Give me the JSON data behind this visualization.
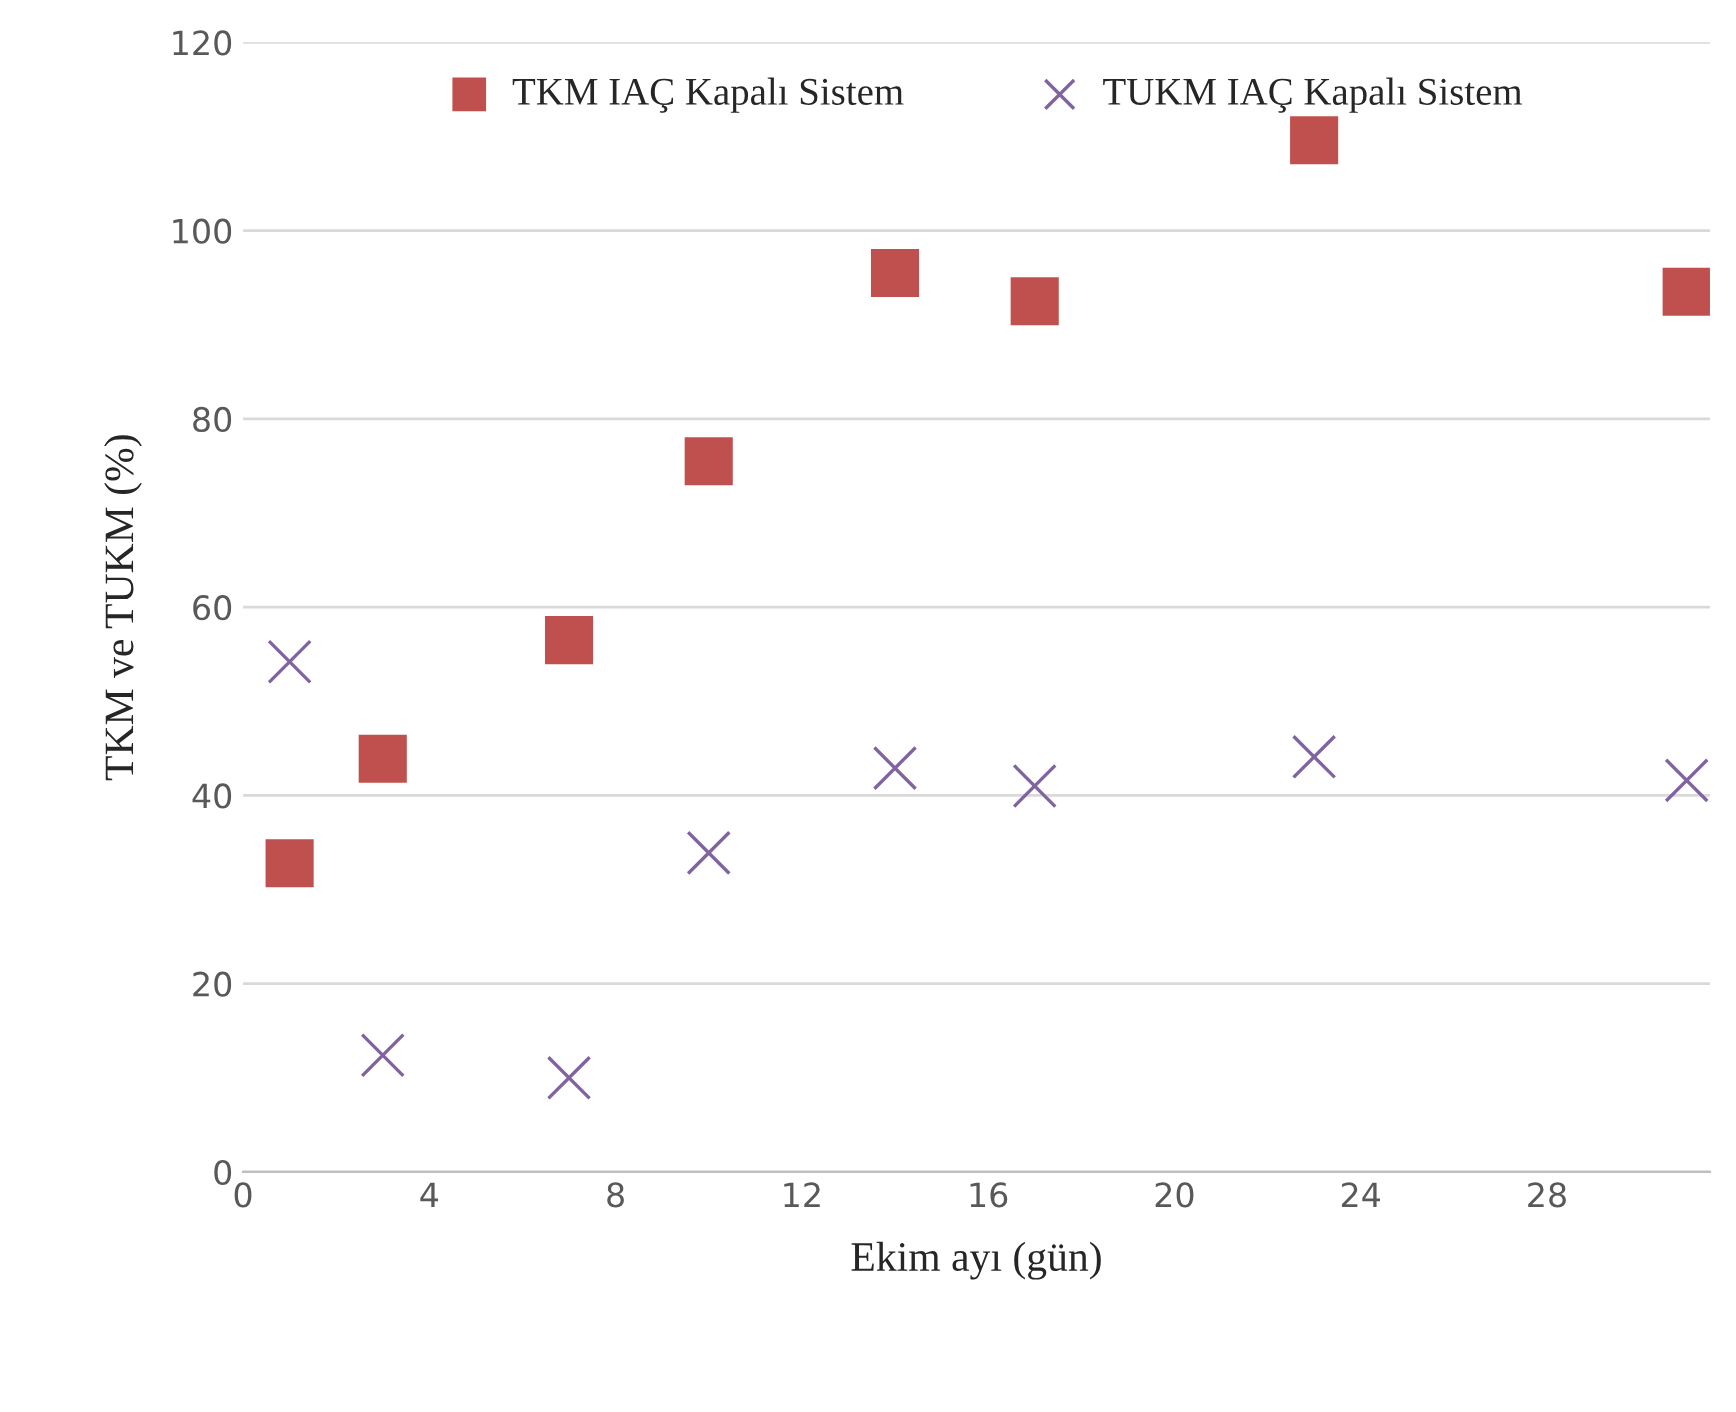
{
  "chart_data": {
    "type": "scatter",
    "xlabel": "Ekim ayı (gün)",
    "ylabel": "TKM ve TUKM (%)",
    "xlim": [
      0,
      31.5
    ],
    "xticks": [
      0,
      4,
      8,
      12,
      16,
      20,
      24,
      28
    ],
    "ylim": [
      0,
      120
    ],
    "yticks": [
      0,
      20,
      40,
      60,
      80,
      100,
      120
    ],
    "grid": "y",
    "legend": "top",
    "series": [
      {
        "name": "TKM IAÇ Kapalı Sistem",
        "color": "#c0504d",
        "marker": "square",
        "x": [
          1,
          3,
          7,
          10,
          14,
          17,
          23,
          31
        ],
        "values": [
          32.8,
          43.9,
          56.5,
          75.5,
          95.5,
          92.5,
          109.6,
          93.5
        ]
      },
      {
        "name": "TUKM IAÇ Kapalı Sistem",
        "color": "#8064a2",
        "marker": "cross",
        "x": [
          1,
          3,
          7,
          10,
          14,
          17,
          23,
          31
        ],
        "values": [
          54.2,
          12.4,
          10,
          33.9,
          42.9,
          41,
          44.1,
          41.6
        ]
      }
    ]
  }
}
